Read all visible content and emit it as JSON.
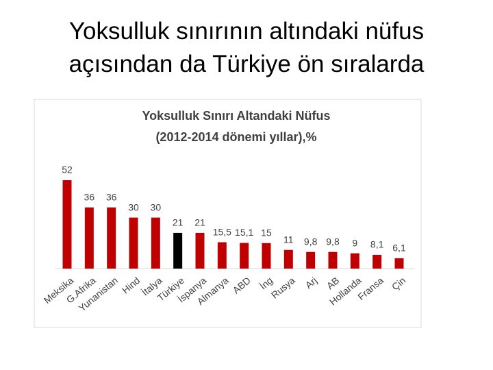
{
  "slide_title": [
    "Yoksulluk sınırının altındaki nüfus",
    "açısından da Türkiye ön sıralarda"
  ],
  "chart_data": {
    "type": "bar",
    "title": [
      "Yoksulluk Sınırı Altandaki Nüfus",
      "(2012-2014 dönemi yıllar),%"
    ],
    "categories": [
      "Meksika",
      "G.Afrika",
      "Yunanistan",
      "Hind",
      "İtalya",
      "Türkiye",
      "İspanya",
      "Almanya",
      "ABD",
      "İng",
      "Rusya",
      "Arj",
      "AB",
      "Hollanda",
      "Fransa",
      "Çin"
    ],
    "values": [
      52,
      36,
      36,
      30,
      30,
      21,
      21,
      15.5,
      15.1,
      15,
      11,
      9.8,
      9.8,
      9,
      8.1,
      6.1
    ],
    "value_labels": [
      "52",
      "36",
      "36",
      "30",
      "30",
      "21",
      "21",
      "15,5",
      "15,1",
      "15",
      "11",
      "9,8",
      "9,8",
      "9",
      "8,1",
      "6,1"
    ],
    "colors": [
      "#c00000",
      "#c00000",
      "#c00000",
      "#c00000",
      "#c00000",
      "#000000",
      "#c00000",
      "#c00000",
      "#c00000",
      "#c00000",
      "#c00000",
      "#c00000",
      "#c00000",
      "#c00000",
      "#c00000",
      "#c00000"
    ]
  }
}
